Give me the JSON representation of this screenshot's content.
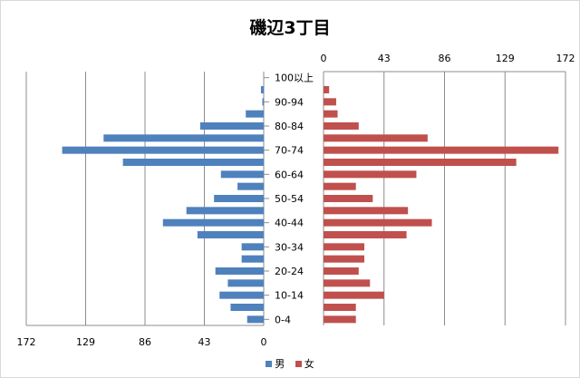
{
  "chart_data": {
    "type": "bar",
    "orientation": "horizontal-pyramid",
    "title": "磯辺3丁目",
    "categories": [
      "0-4",
      "5-9",
      "10-14",
      "15-19",
      "20-24",
      "25-29",
      "30-34",
      "35-39",
      "40-44",
      "45-49",
      "50-54",
      "55-59",
      "60-64",
      "65-69",
      "70-74",
      "75-79",
      "80-84",
      "85-89",
      "90-94",
      "95-99",
      "100以上"
    ],
    "category_labels_shown": [
      "0-4",
      "10-14",
      "20-24",
      "30-34",
      "40-44",
      "50-54",
      "60-64",
      "70-74",
      "80-84",
      "90-94",
      "100以上"
    ],
    "series": [
      {
        "name": "男",
        "color": "#4F81BD",
        "side": "left",
        "values": [
          12,
          24,
          32,
          26,
          35,
          16,
          16,
          48,
          73,
          56,
          36,
          19,
          31,
          102,
          146,
          116,
          46,
          13,
          1,
          2,
          0
        ]
      },
      {
        "name": "女",
        "color": "#C0504D",
        "side": "right",
        "values": [
          23,
          23,
          43,
          33,
          25,
          29,
          29,
          59,
          77,
          60,
          35,
          23,
          66,
          137,
          167,
          74,
          25,
          10,
          9,
          4,
          0
        ]
      }
    ],
    "xlim": [
      0,
      172
    ],
    "x_ticks_left": [
      "172",
      "129",
      "86",
      "43",
      "0"
    ],
    "x_ticks_right": [
      "0",
      "43",
      "86",
      "129",
      "172"
    ],
    "grid": true,
    "legend": "bottom"
  }
}
